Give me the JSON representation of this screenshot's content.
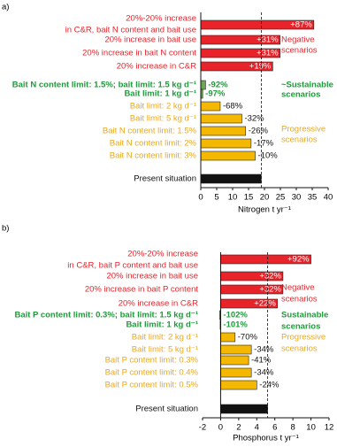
{
  "chart_data": [
    {
      "type": "bar",
      "orientation": "horizontal",
      "panel_label": "a)",
      "x_label": "Nitrogen t yr⁻¹",
      "categories": [
        [
          "20%-20% increase",
          "in C&R, bait N content and bait use"
        ],
        "20% increase in bait use",
        "20% increase in bait N content",
        "20% increase in C&R",
        "Bait N content limit: 1.5%; bait limit: 1.5 kg d⁻¹",
        "Bait limit: 1 kg d⁻¹",
        "Bait limit: 2 kg d⁻¹",
        "Bait limit: 5 kg d⁻¹",
        "Bait N content limit: 1.5%",
        "Bait N content limit: 2%",
        "Bait N content limit: 3%",
        "Present situation"
      ],
      "values": [
        35.5,
        24.9,
        24.9,
        22.6,
        1.5,
        0.6,
        6.1,
        12.9,
        14.1,
        15.8,
        17.1,
        19
      ],
      "change_labels": [
        "+87%",
        "+31%",
        "+31%",
        "+19%",
        "-92%",
        "-97%",
        "-68%",
        "-32%",
        "-26%",
        "-17%",
        "-10%",
        null
      ],
      "colors": [
        "#e8232a",
        "#e8232a",
        "#e8232a",
        "#e8232a",
        "#6aa84f",
        "#6aa84f",
        "#f5b800",
        "#f5b800",
        "#f5b800",
        "#f5b800",
        "#f5b800",
        "#111111"
      ],
      "label_colors": [
        "#e8232a",
        "#e8232a",
        "#e8232a",
        "#e8232a",
        "#1e9b3a",
        "#1e9b3a",
        "#eca81a",
        "#eca81a",
        "#eca81a",
        "#eca81a",
        "#eca81a",
        "#111111"
      ],
      "label_bold": [
        false,
        false,
        false,
        false,
        true,
        true,
        false,
        false,
        false,
        false,
        false,
        false
      ],
      "annotations": [
        {
          "lines": [
            "Negative",
            "scenarios"
          ],
          "color": "#e8232a",
          "bold": false
        },
        {
          "lines": [
            "~Sustainable",
            "scenarios"
          ],
          "color": "#1e9b3a",
          "bold": true
        },
        {
          "lines": [
            "Progressive",
            "scenarios"
          ],
          "color": "#eca81a",
          "bold": false
        }
      ],
      "xlim": [
        0,
        40
      ],
      "xticks": [
        0,
        5,
        10,
        15,
        20,
        25,
        30,
        35,
        40
      ],
      "reference_line": true
    },
    {
      "type": "bar",
      "orientation": "horizontal",
      "panel_label": "b)",
      "x_label": "Phosphorus t yr⁻¹",
      "categories": [
        [
          "20%-20% increase",
          "in C&R, bait P content and bait use"
        ],
        "20% increase in bait use",
        "20% increase in bait P content",
        "20% increase in C&R",
        "Bait P content limit: 0.3%; bait limit: 1.5 kg d⁻¹",
        "Bait limit: 1 kg d⁻¹",
        "Bait limit: 2 kg d⁻¹",
        "Bait limit: 5 kg d⁻¹",
        "Bait P content limit: 0.3%",
        "Bait P content limit: 0.4%",
        "Bait P content limit: 0.5%",
        "Present situation"
      ],
      "values": [
        10.0,
        6.9,
        6.9,
        6.3,
        -0.1,
        -0.05,
        1.6,
        3.4,
        3.1,
        3.4,
        4.0,
        5.2
      ],
      "change_labels": [
        "+92%",
        "+32%",
        "+32%",
        "+22%",
        "-102%",
        "-101%",
        "-70%",
        "-34%",
        "-41%",
        "-34%",
        "-24%",
        null
      ],
      "colors": [
        "#e8232a",
        "#e8232a",
        "#e8232a",
        "#e8232a",
        "#6aa84f",
        "#6aa84f",
        "#f5b800",
        "#f5b800",
        "#f5b800",
        "#f5b800",
        "#f5b800",
        "#111111"
      ],
      "label_colors": [
        "#e8232a",
        "#e8232a",
        "#e8232a",
        "#e8232a",
        "#1e9b3a",
        "#1e9b3a",
        "#eca81a",
        "#eca81a",
        "#eca81a",
        "#eca81a",
        "#eca81a",
        "#111111"
      ],
      "label_bold": [
        false,
        false,
        false,
        false,
        true,
        true,
        false,
        false,
        false,
        false,
        false,
        false
      ],
      "annotations": [
        {
          "lines": [
            "Negative",
            "scenarios"
          ],
          "color": "#e8232a",
          "bold": false
        },
        {
          "lines": [
            "Sustainable",
            "scenarios"
          ],
          "color": "#1e9b3a",
          "bold": true
        },
        {
          "lines": [
            "Progressive",
            "scenarios"
          ],
          "color": "#eca81a",
          "bold": false
        }
      ],
      "xlim": [
        -2,
        12
      ],
      "xticks": [
        -2,
        0,
        2,
        4,
        6,
        8,
        10,
        12
      ],
      "reference_line": true
    }
  ]
}
